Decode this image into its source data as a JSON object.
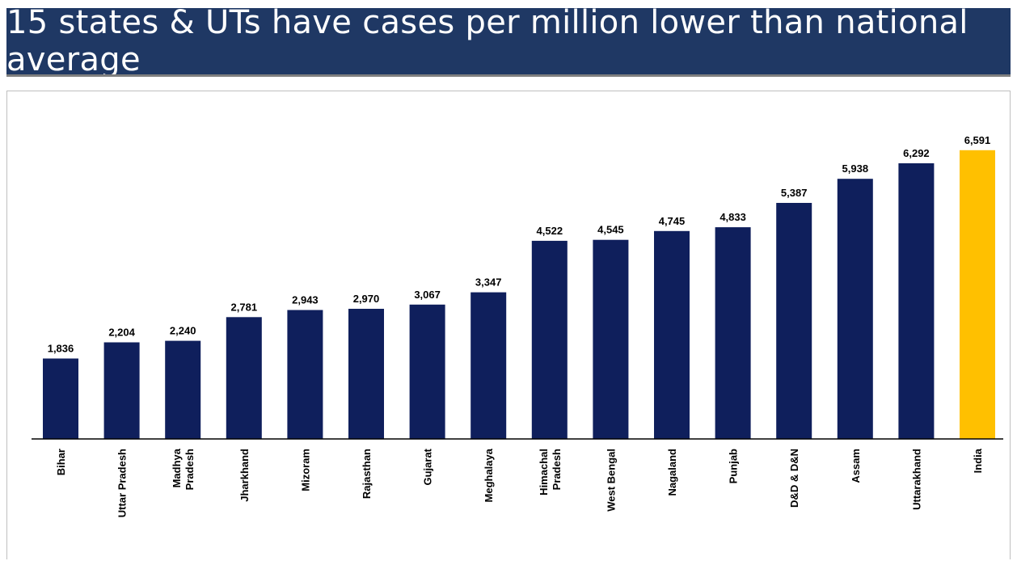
{
  "header": {
    "title": "15 states & UTs have cases per million lower than national average"
  },
  "colors": {
    "header_bg": "#1f3864",
    "bar_default": "#0f1f5c",
    "bar_highlight": "#ffc000"
  },
  "chart_data": {
    "type": "bar",
    "title": "",
    "xlabel": "",
    "ylabel": "",
    "ylim": [
      0,
      7000
    ],
    "grid": false,
    "categories": [
      [
        "Bihar"
      ],
      [
        "Uttar Pradesh"
      ],
      [
        "Madhya",
        "Pradesh"
      ],
      [
        "Jharkhand"
      ],
      [
        "Mizoram"
      ],
      [
        "Rajasthan"
      ],
      [
        "Gujarat"
      ],
      [
        "Meghalaya"
      ],
      [
        "Himachal",
        "Pradesh"
      ],
      [
        "West Bengal"
      ],
      [
        "Nagaland"
      ],
      [
        "Punjab"
      ],
      [
        "D&D & D&N"
      ],
      [
        "Assam"
      ],
      [
        "Uttarakhand"
      ],
      [
        "India"
      ]
    ],
    "values": [
      1836,
      2204,
      2240,
      2781,
      2943,
      2970,
      3067,
      3347,
      4522,
      4545,
      4745,
      4833,
      5387,
      5938,
      6292,
      6591
    ],
    "value_labels": [
      "1,836",
      "2,204",
      "2,240",
      "2,781",
      "2,943",
      "2,970",
      "3,067",
      "3,347",
      "4,522",
      "4,545",
      "4,745",
      "4,833",
      "5,387",
      "5,938",
      "6,292",
      "6,591"
    ],
    "highlight": [
      "India"
    ]
  }
}
